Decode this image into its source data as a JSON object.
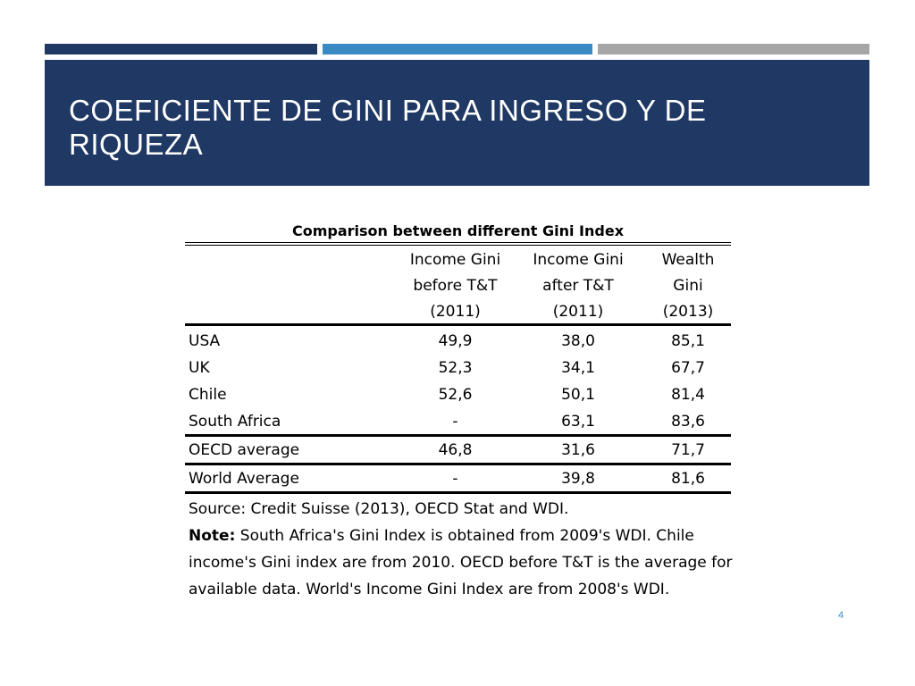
{
  "slide": {
    "title": "COEFICIENTE DE GINI PARA INGRESO Y DE RIQUEZA",
    "page_number": "4",
    "colors": {
      "accent_dark": "#1f3864",
      "accent_blue": "#3a8ac4",
      "accent_gray": "#a6a6a6"
    }
  },
  "table": {
    "caption": "Comparison between different Gini Index",
    "headers": [
      {
        "line1": "",
        "line2": "",
        "line3": ""
      },
      {
        "line1": "Income Gini",
        "line2": "before T&T",
        "line3": "(2011)"
      },
      {
        "line1": "Income Gini",
        "line2": "after T&T",
        "line3": "(2011)"
      },
      {
        "line1": "Wealth",
        "line2": "Gini",
        "line3": "(2013)"
      }
    ],
    "rows": [
      {
        "country": "USA",
        "before": "49,9",
        "after": "38,0",
        "wealth": "85,1"
      },
      {
        "country": "UK",
        "before": "52,3",
        "after": "34,1",
        "wealth": "67,7"
      },
      {
        "country": "Chile",
        "before": "52,6",
        "after": "50,1",
        "wealth": "81,4"
      },
      {
        "country": "South Africa",
        "before": "-",
        "after": "63,1",
        "wealth": "83,6"
      },
      {
        "country": "OECD average",
        "before": "46,8",
        "after": "31,6",
        "wealth": "71,7"
      },
      {
        "country": "World Average",
        "before": "-",
        "after": "39,8",
        "wealth": "81,6"
      }
    ],
    "source": "Source: Credit Suisse (2013), OECD Stat and WDI.",
    "note_label": "Note:",
    "note_text": " South Africa's Gini Index is obtained from 2009's WDI. Chile income's Gini index are from 2010. OECD before T&T is the average for available data. World's Income Gini Index are from 2008's WDI."
  }
}
